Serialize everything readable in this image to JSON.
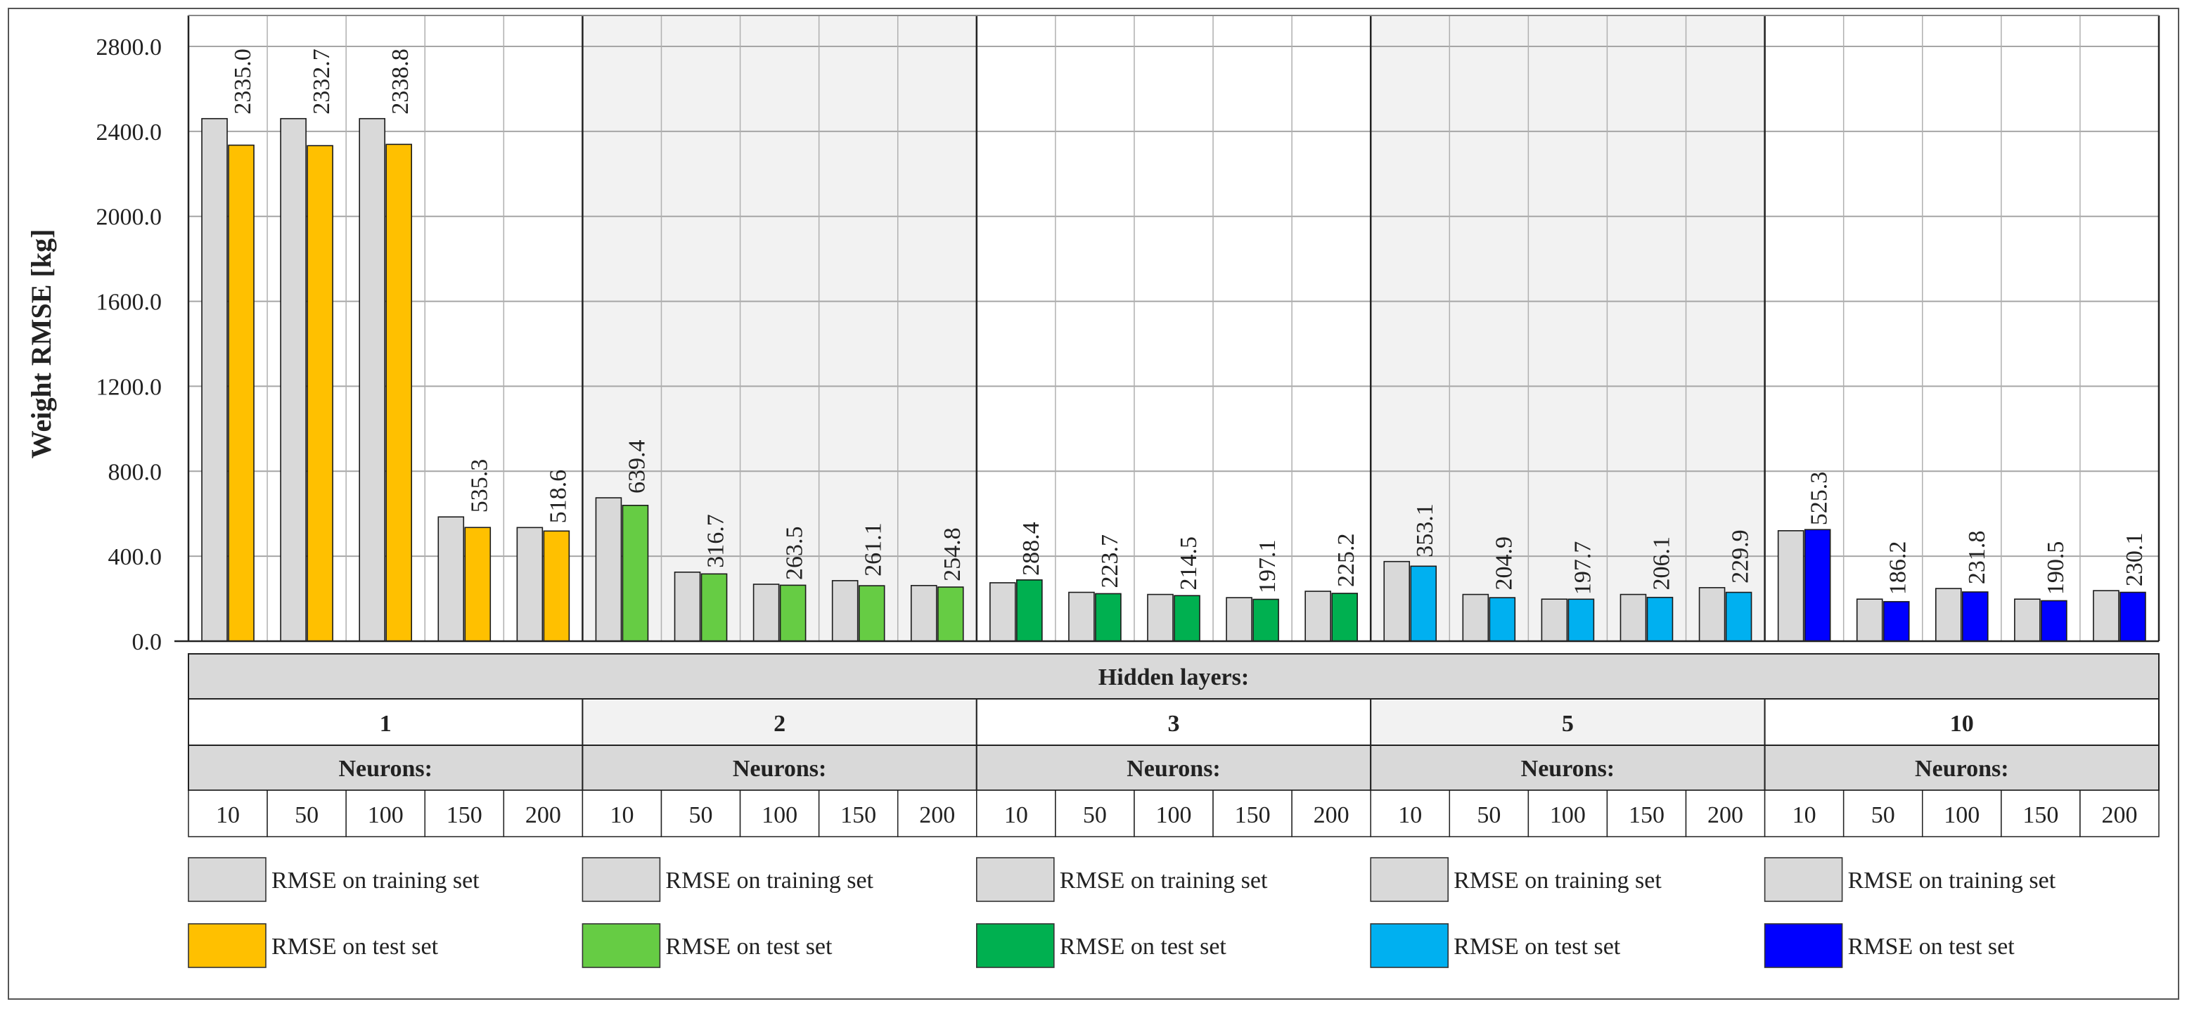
{
  "chart_data": {
    "type": "bar",
    "ylabel": "Weight RMSE [kg]",
    "ylim": [
      0,
      2800
    ],
    "yticks": [
      "0.0",
      "400.0",
      "800.0",
      "1200.0",
      "1600.0",
      "2000.0",
      "2400.0",
      "2800.0"
    ],
    "grid": true,
    "hidden_layers_label": "Hidden layers:",
    "neurons_label": "Neurons:",
    "neurons": [
      "10",
      "50",
      "100",
      "150",
      "200"
    ],
    "groups": [
      {
        "hidden_layers": "1",
        "shaded": false,
        "train_color": "#d9d9d9",
        "test_color": "#ffc000",
        "train": [
          2460,
          2460,
          2460,
          585,
          535
        ],
        "test": [
          2335.0,
          2332.7,
          2338.8,
          535.3,
          518.6
        ],
        "test_labels": [
          "2335.0",
          "2332.7",
          "2338.8",
          "535.3",
          "518.6"
        ]
      },
      {
        "hidden_layers": "2",
        "shaded": true,
        "train_color": "#d9d9d9",
        "test_color": "#66cc44",
        "train": [
          675,
          325,
          268,
          285,
          262
        ],
        "test": [
          639.4,
          316.7,
          263.5,
          261.1,
          254.8
        ],
        "test_labels": [
          "639.4",
          "316.7",
          "263.5",
          "261.1",
          "254.8"
        ]
      },
      {
        "hidden_layers": "3",
        "shaded": false,
        "train_color": "#d9d9d9",
        "test_color": "#00b050",
        "train": [
          275,
          230,
          220,
          205,
          235
        ],
        "test": [
          288.4,
          223.7,
          214.5,
          197.1,
          225.2
        ],
        "test_labels": [
          "288.4",
          "223.7",
          "214.5",
          "197.1",
          "225.2"
        ]
      },
      {
        "hidden_layers": "5",
        "shaded": true,
        "train_color": "#d9d9d9",
        "test_color": "#00b0f0",
        "train": [
          375,
          220,
          198,
          220,
          252
        ],
        "test": [
          353.1,
          204.9,
          197.7,
          206.1,
          229.9
        ],
        "test_labels": [
          "353.1",
          "204.9",
          "197.7",
          "206.1",
          "229.9"
        ]
      },
      {
        "hidden_layers": "10",
        "shaded": false,
        "train_color": "#d9d9d9",
        "test_color": "#0000ff",
        "train": [
          520,
          198,
          248,
          198,
          238
        ],
        "test": [
          525.3,
          186.2,
          231.8,
          190.5,
          230.1
        ],
        "test_labels": [
          "525.3",
          "186.2",
          "231.8",
          "190.5",
          "230.1"
        ]
      }
    ],
    "legend": {
      "train_label": "RMSE on training set",
      "test_label": "RMSE on test set"
    }
  }
}
